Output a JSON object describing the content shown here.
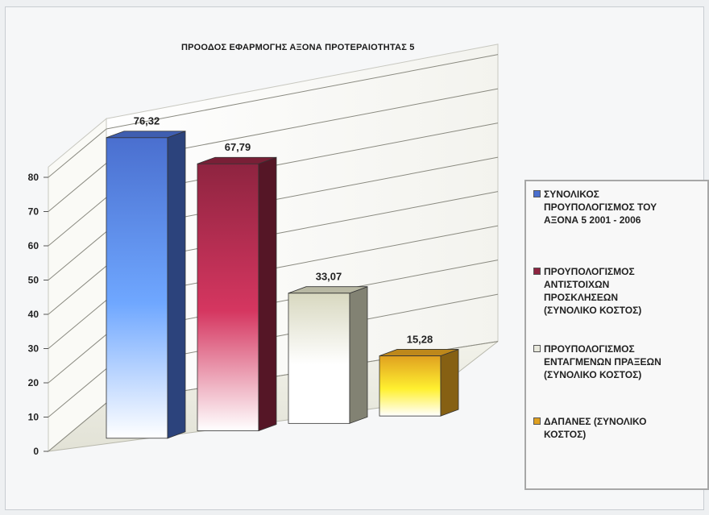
{
  "chart_data": {
    "type": "bar",
    "title": "ΠΡΟΟΔΟΣ ΕΦΑΡΜΟΓΗΣ ΑΞΟΝΑ ΠΡΟΤΕΡΑΙΟΤΗΤΑΣ 5",
    "xlabel": "",
    "ylabel": "",
    "ylim": [
      0,
      80
    ],
    "yticks": [
      0,
      10,
      20,
      30,
      40,
      50,
      60,
      70,
      80
    ],
    "grid": true,
    "legend_position": "right",
    "series": [
      {
        "name": "ΣΥΝΟΛΙΚΟΣ ΠΡΟΥΠΟΛΟΓΙΣΜΟΣ ΤΟΥ ΑΞΟΝΑ 5 2001 - 2006",
        "value": 76.32,
        "label": "76,32",
        "color": "#4a6fcf"
      },
      {
        "name": "ΠΡΟΥΠΟΛΟΓΙΣΜΟΣ ΑΝΤΙΣΤΟΙΧΩΝ ΠΡΟΣΚΛΗΣΕΩΝ (ΣΥΝΟΛΙΚΟ ΚΟΣΤΟΣ)",
        "value": 67.79,
        "label": "67,79",
        "color": "#8e2440"
      },
      {
        "name": "ΠΡΟΥΠΟΛΟΓΙΣΜΟΣ ΕΝΤΑΓΜΕΝΩΝ ΠΡΑΞΕΩΝ (ΣΥΝΟΛΙΚΟ ΚΟΣΤΟΣ)",
        "value": 33.07,
        "label": "33,07",
        "color": "#d8d8c0"
      },
      {
        "name": "ΔΑΠΑΝΕΣ (ΣΥΝΟΛΙΚΟ ΚΟΣΤΟΣ)",
        "value": 15.28,
        "label": "15,28",
        "color": "#e0a020"
      }
    ]
  },
  "legend": [
    {
      "text": "ΣΥΝΟΛΙΚΟΣ\nΠΡΟΥΠΟΛΟΓΙΣΜΟΣ ΤΟΥ\nΑΞΟΝΑ 5 2001 - 2006"
    },
    {
      "text": "ΠΡΟΥΠΟΛΟΓΙΣΜΟΣ\nΑΝΤΙΣΤΟΙΧΩΝ\nΠΡΟΣΚΛΗΣΕΩΝ\n(ΣΥΝΟΛΙΚΟ ΚΟΣΤΟΣ)"
    },
    {
      "text": "ΠΡΟΥΠΟΛΟΓΙΣΜΟΣ\nΕΝΤΑΓΜΕΝΩΝ ΠΡΑΞΕΩΝ\n(ΣΥΝΟΛΙΚΟ ΚΟΣΤΟΣ)"
    },
    {
      "text": "ΔΑΠΑΝΕΣ (ΣΥΝΟΛΙΚΟ\nΚΟΣΤΟΣ)"
    }
  ]
}
